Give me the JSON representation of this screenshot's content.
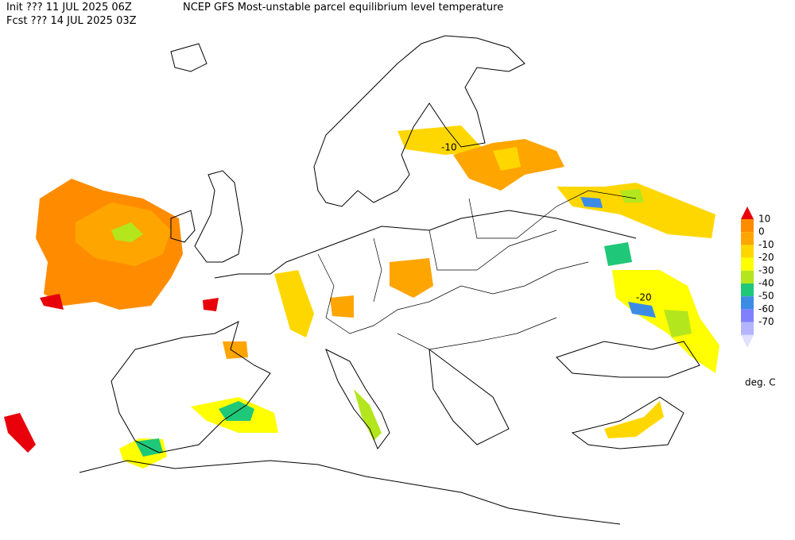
{
  "header": {
    "init": "Init  ??? 11 JUL 2025 06Z",
    "fcst": "Fcst ??? 14 JUL 2025 03Z",
    "title": "NCEP GFS Most-unstable parcel equilibrium level temperature"
  },
  "legend": {
    "labels": [
      10,
      0,
      -10,
      -20,
      -30,
      -40,
      -50,
      -60,
      -70
    ],
    "colors": [
      "#e8000b",
      "#ff8c00",
      "#ffa500",
      "#ffd700",
      "#ffff00",
      "#b4e61e",
      "#1ec878",
      "#3c8ce6",
      "#8080ff",
      "#b4b4ff",
      "#e0e0ff"
    ],
    "unit": "deg. C"
  },
  "contour_labels": [
    -10,
    -20
  ]
}
